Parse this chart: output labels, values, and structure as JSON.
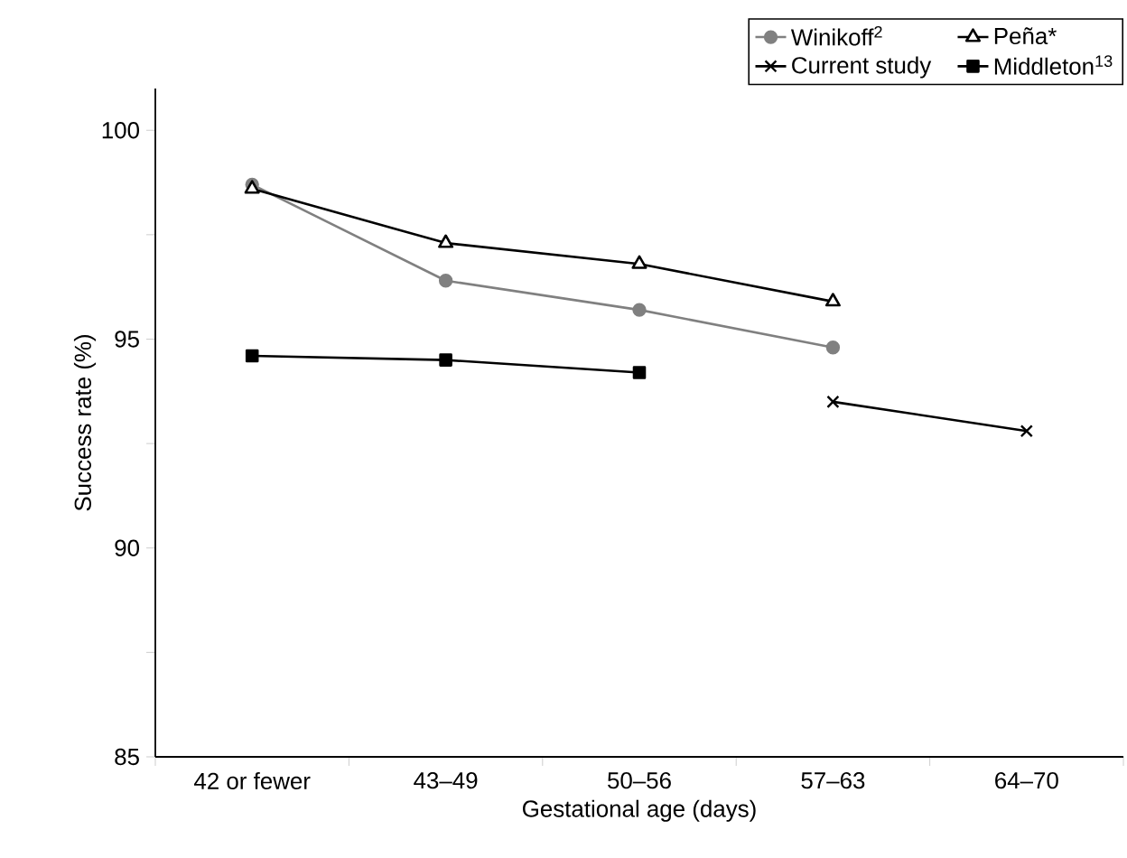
{
  "chart_data": {
    "type": "line",
    "xlabel": "Gestational age (days)",
    "ylabel": "Success rate (%)",
    "categories": [
      "42 or fewer",
      "43–49",
      "50–56",
      "57–63",
      "64–70"
    ],
    "ylim": [
      85,
      101
    ],
    "yticks": [
      85,
      90,
      95,
      100
    ],
    "grid": false,
    "legend": "top right",
    "series": [
      {
        "name": "Winikoff$^{2}$",
        "color": "#808080",
        "marker": "circle",
        "values": [
          98.7,
          96.4,
          95.7,
          94.8,
          null
        ]
      },
      {
        "name": "Peña*",
        "color": "#000000",
        "marker": "triangle",
        "values": [
          98.6,
          97.3,
          96.8,
          95.9,
          null
        ]
      },
      {
        "name": "Current study",
        "color": "#000000",
        "marker": "cross",
        "values": [
          null,
          null,
          null,
          93.5,
          92.8
        ]
      },
      {
        "name": "Middleton$^{13}$",
        "color": "#000000",
        "marker": "square",
        "values": [
          94.6,
          94.5,
          94.2,
          null,
          null
        ]
      }
    ]
  }
}
